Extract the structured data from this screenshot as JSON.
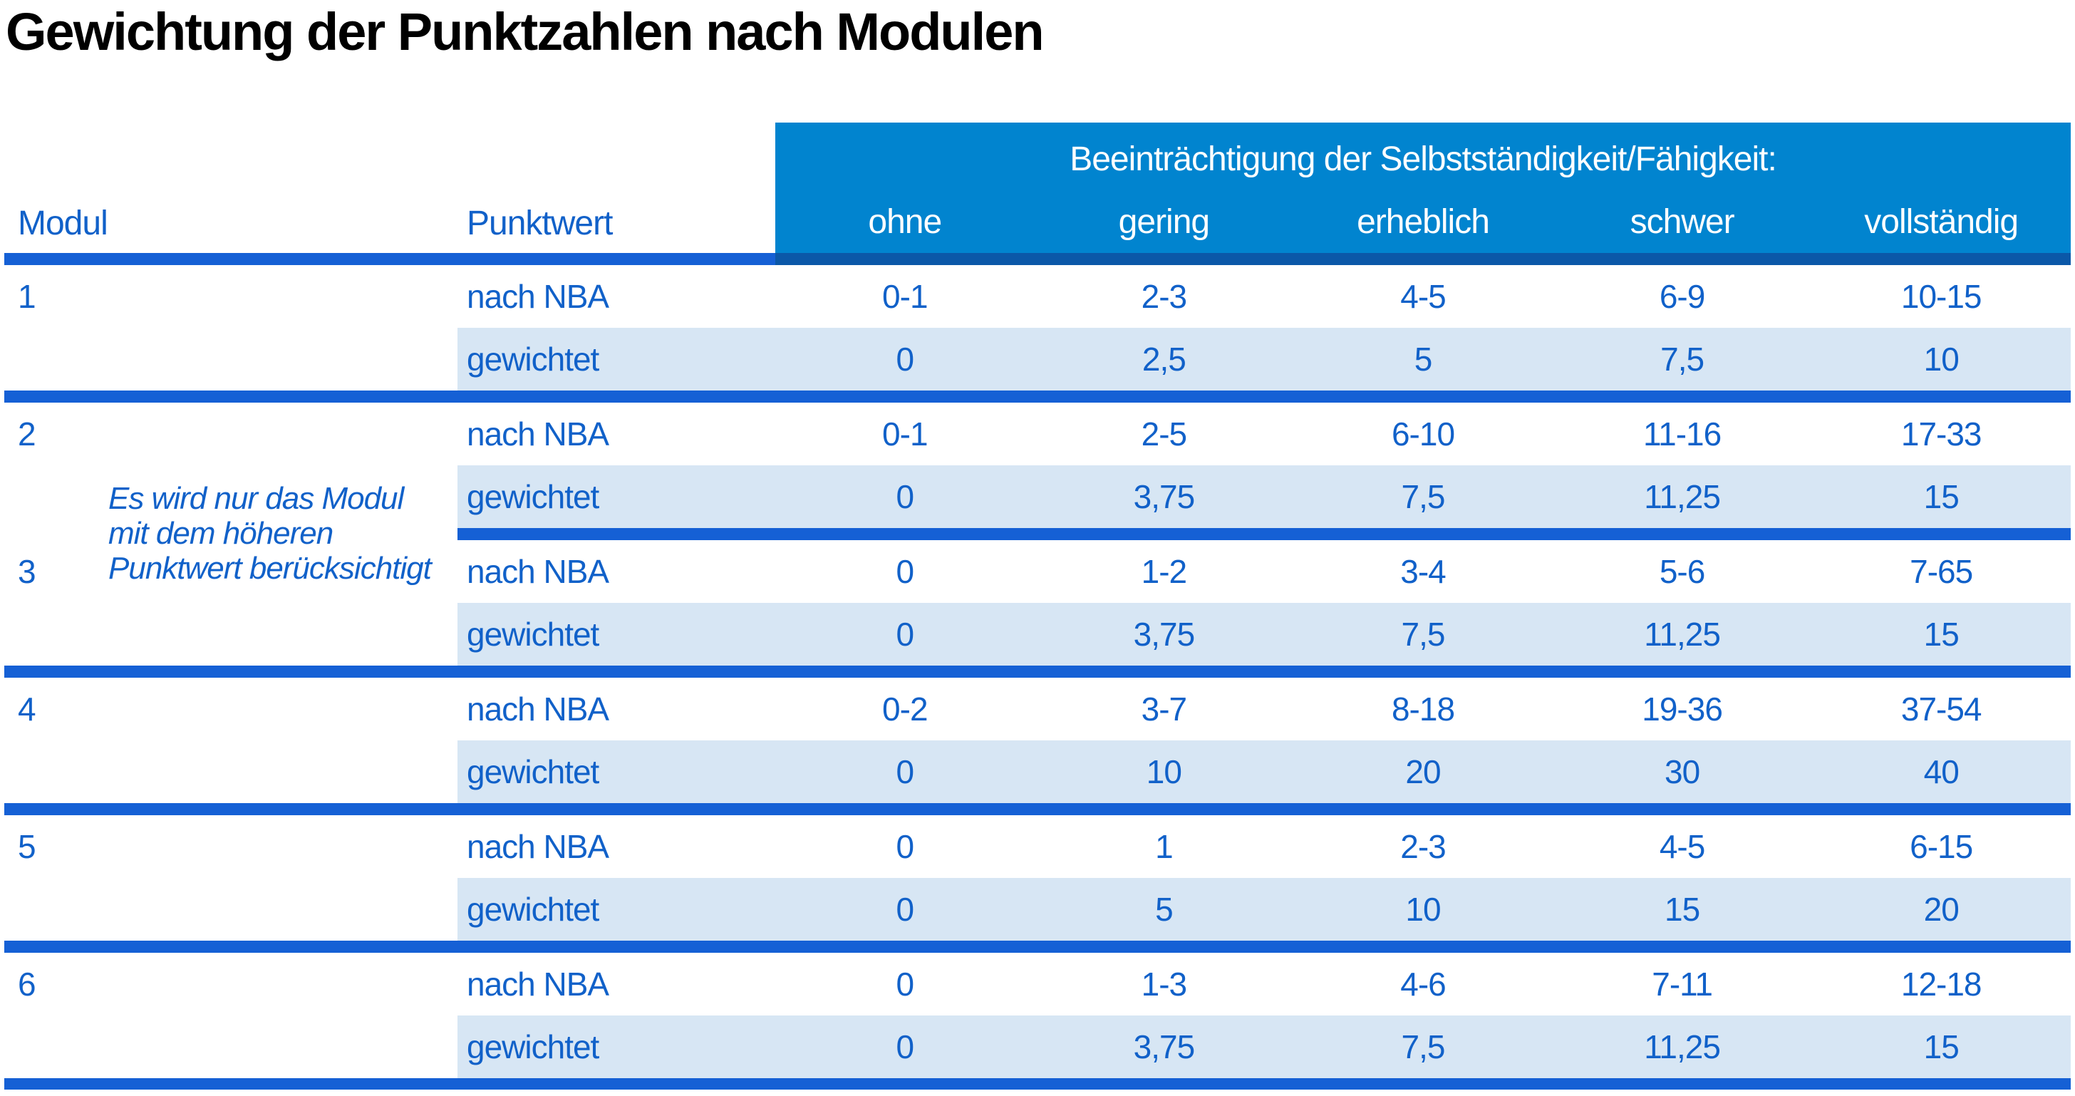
{
  "title": "Gewichtung der Punktzahlen nach Modulen",
  "colors": {
    "header_bg": "#0184cf",
    "header_text": "#ffffff",
    "body_text": "#1161c9",
    "shaded_row_bg": "#d7e6f4",
    "divider": "#1560d5",
    "divider_dark": "#0b58a8",
    "title_text": "#000000"
  },
  "table": {
    "col_headers": {
      "modul": "Modul",
      "punktwert": "Punktwert"
    },
    "span_header": "Beeinträchtigung der Selbstständigkeit/Fähigkeit:",
    "severity_headers": [
      "ohne",
      "gering",
      "erheblich",
      "schwer",
      "vollständig"
    ],
    "labels": {
      "nba": "nach NBA",
      "weighted": "gewichtet"
    },
    "note_lines": [
      "Es wird nur das Modul",
      "mit dem höheren",
      "Punktwert berücksichtigt"
    ],
    "modules": [
      {
        "id": "1",
        "nba": [
          "0-1",
          "2-3",
          "4-5",
          "6-9",
          "10-15"
        ],
        "weighted": [
          "0",
          "2,5",
          "5",
          "7,5",
          "10"
        ]
      },
      {
        "id": "2",
        "nba": [
          "0-1",
          "2-5",
          "6-10",
          "11-16",
          "17-33"
        ],
        "weighted": [
          "0",
          "3,75",
          "7,5",
          "11,25",
          "15"
        ]
      },
      {
        "id": "3",
        "nba": [
          "0",
          "1-2",
          "3-4",
          "5-6",
          "7-65"
        ],
        "weighted": [
          "0",
          "3,75",
          "7,5",
          "11,25",
          "15"
        ]
      },
      {
        "id": "4",
        "nba": [
          "0-2",
          "3-7",
          "8-18",
          "19-36",
          "37-54"
        ],
        "weighted": [
          "0",
          "10",
          "20",
          "30",
          "40"
        ]
      },
      {
        "id": "5",
        "nba": [
          "0",
          "1",
          "2-3",
          "4-5",
          "6-15"
        ],
        "weighted": [
          "0",
          "5",
          "10",
          "15",
          "20"
        ]
      },
      {
        "id": "6",
        "nba": [
          "0",
          "1-3",
          "4-6",
          "7-11",
          "12-18"
        ],
        "weighted": [
          "0",
          "3,75",
          "7,5",
          "11,25",
          "15"
        ]
      }
    ]
  }
}
